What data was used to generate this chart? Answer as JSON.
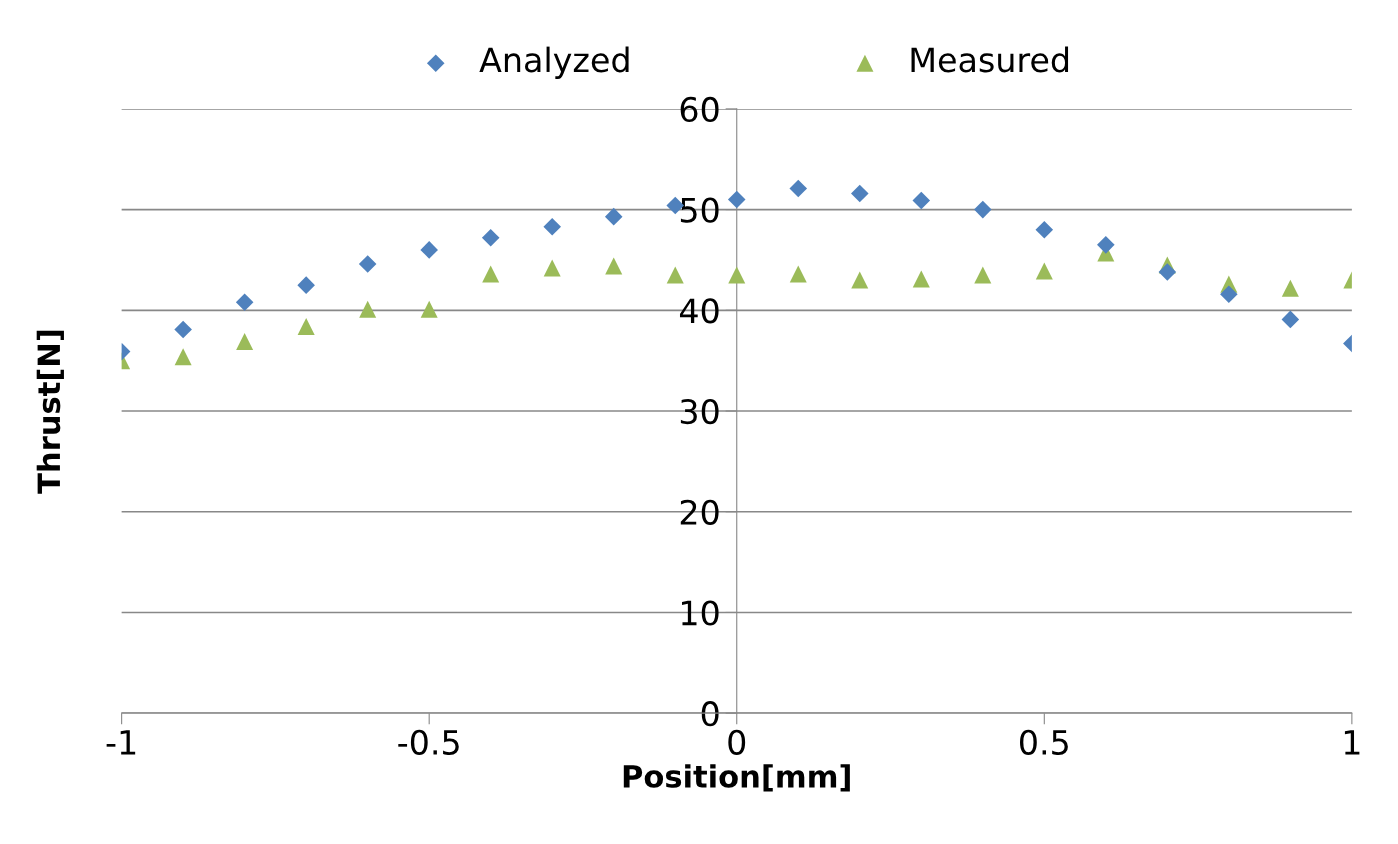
{
  "chart_data": {
    "type": "scatter",
    "xlabel": "Position[mm]",
    "ylabel": "Thrust[N]",
    "x": [
      -1,
      -0.9,
      -0.8,
      -0.7,
      -0.6,
      -0.5,
      -0.4,
      -0.3,
      -0.2,
      -0.1,
      0,
      0.1,
      0.2,
      0.3,
      0.4,
      0.5,
      0.6,
      0.7,
      0.8,
      0.9,
      1
    ],
    "series": [
      {
        "name": "Analyzed",
        "color": "#4f81bd",
        "marker": "diamond",
        "values": [
          35.9,
          38.1,
          40.8,
          42.5,
          44.6,
          46.0,
          47.2,
          48.3,
          49.3,
          50.4,
          51.0,
          52.1,
          51.6,
          50.9,
          50.0,
          48.0,
          46.5,
          43.8,
          41.6,
          39.1,
          36.7
        ]
      },
      {
        "name": "Measured",
        "color": "#9bbb59",
        "marker": "triangle",
        "values": [
          35.0,
          35.4,
          36.9,
          38.4,
          40.1,
          40.1,
          43.6,
          44.2,
          44.4,
          43.5,
          43.5,
          43.6,
          43.0,
          43.1,
          43.5,
          43.9,
          45.7,
          44.5,
          42.6,
          42.2,
          43.0
        ]
      }
    ],
    "xlim": [
      -1,
      1
    ],
    "xticks": [
      -1,
      -0.5,
      0,
      0.5,
      1
    ],
    "ylim": [
      0,
      60
    ],
    "yticks": [
      0,
      10,
      20,
      30,
      40,
      50,
      60
    ],
    "grid": "y",
    "legend": "top"
  }
}
